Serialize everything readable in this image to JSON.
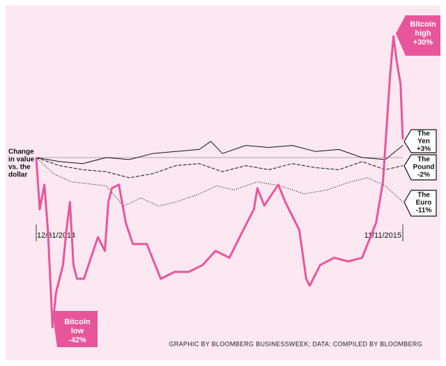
{
  "chart_data": {
    "type": "line",
    "axis_label": [
      "Change",
      "in value",
      "vs. the",
      "dollar"
    ],
    "xlim": [
      0,
      315
    ],
    "xticks": [
      {
        "value": 0,
        "label": "12/31/2014"
      },
      {
        "value": 315,
        "label": "11/11/2015"
      }
    ],
    "ylim": [
      -50.2,
      37.6
    ],
    "zero_line": true,
    "series": [
      {
        "name": "Bitcoin",
        "color": "#e8559a",
        "style": "solid",
        "x": [
          0,
          3,
          7,
          10,
          14,
          17,
          20,
          23,
          26,
          29,
          32,
          35,
          41,
          47,
          53,
          59,
          62,
          65,
          71,
          77,
          83,
          95,
          107,
          119,
          131,
          143,
          154,
          166,
          178,
          187,
          190,
          196,
          208,
          214,
          226,
          232,
          235,
          244,
          256,
          268,
          280,
          292,
          298,
          304,
          307,
          310,
          313,
          315
        ],
        "values": [
          0,
          -12.8,
          -6.7,
          -17.9,
          -42,
          -33.4,
          -30,
          -26.6,
          -17.9,
          -11,
          -26.6,
          -30,
          -30,
          -24.8,
          -19.7,
          -23.1,
          -11,
          -7.6,
          -6.7,
          -16.2,
          -21.4,
          -21.4,
          -30,
          -28.3,
          -28.3,
          -26.6,
          -23.1,
          -24.8,
          -17.9,
          -12.8,
          -7.6,
          -11.9,
          -6.7,
          -11,
          -17.9,
          -30,
          -31.7,
          -26.6,
          -24.8,
          -25.7,
          -24.8,
          -16.2,
          -5.9,
          20,
          30,
          23.4,
          18.3,
          4.5
        ]
      },
      {
        "name": "The Yen",
        "color": "#111111",
        "style": "solid",
        "x": [
          0,
          20,
          40,
          60,
          80,
          100,
          120,
          140,
          150,
          160,
          180,
          200,
          220,
          240,
          260,
          280,
          300,
          315
        ],
        "values": [
          0,
          -1,
          -1.5,
          0,
          -0.5,
          1,
          1.5,
          2,
          4,
          1,
          3,
          2.5,
          3,
          1.5,
          2,
          0,
          -0.5,
          3
        ]
      },
      {
        "name": "The Pound",
        "color": "#111111",
        "style": "dashed",
        "x": [
          0,
          20,
          40,
          60,
          80,
          100,
          120,
          140,
          160,
          180,
          200,
          220,
          240,
          260,
          280,
          300,
          315
        ],
        "values": [
          0,
          -2,
          -3,
          -3.5,
          -5,
          -4,
          -2,
          -1.5,
          -3.5,
          -2,
          -3,
          -1.5,
          -2.5,
          -3,
          -1,
          -3,
          -2
        ]
      },
      {
        "name": "The Euro",
        "color": "#111111",
        "style": "dotted",
        "x": [
          0,
          15,
          30,
          45,
          60,
          75,
          90,
          105,
          120,
          140,
          155,
          170,
          190,
          210,
          230,
          250,
          270,
          285,
          300,
          315
        ],
        "values": [
          0,
          -4,
          -6,
          -6.5,
          -7,
          -12,
          -10,
          -12,
          -11,
          -9,
          -7,
          -8,
          -6,
          -7,
          -9,
          -8,
          -6,
          -5,
          -7,
          -11
        ]
      }
    ],
    "annotations": [
      {
        "lines": [
          "Bitcoin",
          "high",
          "+30%"
        ]
      },
      {
        "lines": [
          "Bitcoin",
          "low",
          "-42%"
        ]
      },
      {
        "lines": [
          "The",
          "Yen",
          "+3%"
        ]
      },
      {
        "lines": [
          "The",
          "Pound",
          "-2%"
        ]
      },
      {
        "lines": [
          "The",
          "Euro",
          "-11%"
        ]
      }
    ],
    "source": "GRAPHIC BY BLOOMBERG BUSINESSWEEK; DATA: COMPILED BY BLOOMBERG"
  }
}
